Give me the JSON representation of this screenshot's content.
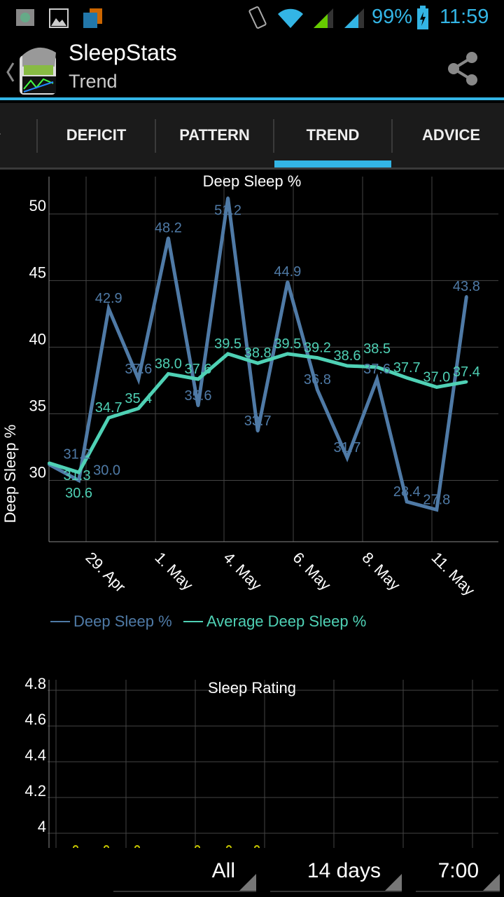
{
  "status_bar": {
    "battery": "99%",
    "time": "11:59",
    "icons": [
      "app-notification-icon",
      "image-icon",
      "rss-icon",
      "vibrate-icon",
      "wifi-icon",
      "signal-green-icon",
      "signal-blue-icon",
      "battery-charging-icon"
    ]
  },
  "action_bar": {
    "title": "SleepStats",
    "subtitle": "Trend",
    "share_icon": "share-icon"
  },
  "tabs": [
    {
      "label": "DEFICIT"
    },
    {
      "label": "PATTERN"
    },
    {
      "label": "TREND",
      "selected": true
    },
    {
      "label": "ADVICE"
    }
  ],
  "colors": {
    "accent": "#33b5e5",
    "deep_sleep": "#4f7aa6",
    "average": "#4fd1b5",
    "rating": "#c8c800"
  },
  "chart_data": [
    {
      "type": "line",
      "title": "Deep Sleep %",
      "ylabel": "Deep Sleep %",
      "xlabel": "",
      "ylim": [
        25.4,
        52.8
      ],
      "yticks": [
        30,
        35,
        40,
        45,
        50
      ],
      "xticks": [
        "29. Apr",
        "1. May",
        "4. May",
        "6. May",
        "8. May",
        "11. May"
      ],
      "grid": true,
      "legend": "bottom-left",
      "series": [
        {
          "name": "Deep Sleep %",
          "values": [
            31.2,
            30.0,
            42.9,
            37.6,
            48.2,
            35.6,
            51.2,
            33.7,
            44.9,
            36.8,
            31.7,
            37.6,
            28.4,
            27.8,
            43.8
          ]
        },
        {
          "name": "Average Deep Sleep %",
          "values": [
            31.3,
            30.6,
            34.7,
            35.4,
            38.0,
            37.6,
            39.5,
            38.8,
            39.5,
            39.2,
            38.6,
            38.5,
            37.7,
            37.0,
            37.4
          ]
        }
      ]
    },
    {
      "type": "line",
      "title": "Sleep Rating",
      "ylim": [
        3.93,
        4.82
      ],
      "yticks": [
        "4",
        "4.2",
        "4.4",
        "4.6",
        "4.8"
      ],
      "grid": true
    }
  ],
  "controls": {
    "filter": "All",
    "range": "14 days",
    "time": "7:00"
  }
}
